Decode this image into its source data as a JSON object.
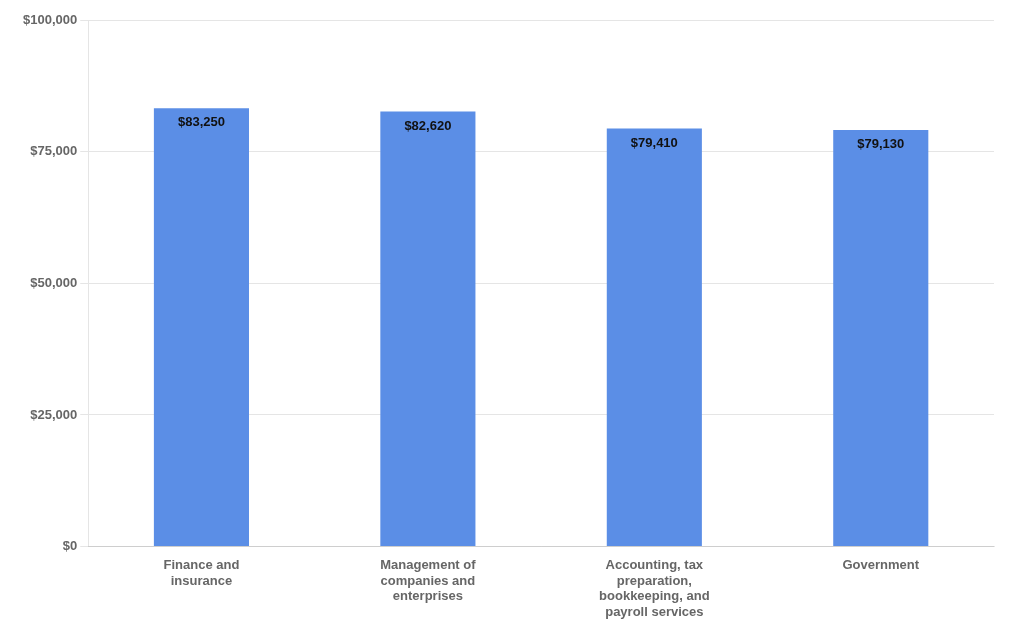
{
  "chart_data": {
    "type": "bar",
    "categories": [
      "Finance and\ninsurance",
      "Management of\ncompanies and\nenterprises",
      "Accounting, tax\npreparation,\nbookkeeping, and\npayroll services",
      "Government"
    ],
    "values": [
      83250,
      82620,
      79410,
      79130
    ],
    "value_labels": [
      "$83,250",
      "$82,620",
      "$79,410",
      "$79,130"
    ],
    "data_labels": true,
    "color": "#5B8EE6",
    "ylim": [
      0,
      100000
    ],
    "yticks": [
      {
        "value": 0,
        "label": "$0"
      },
      {
        "value": 25000,
        "label": "$25,000"
      },
      {
        "value": 50000,
        "label": "$50,000"
      },
      {
        "value": 75000,
        "label": "$75,000"
      },
      {
        "value": 100000,
        "label": "$100,000"
      }
    ],
    "grid": true
  }
}
